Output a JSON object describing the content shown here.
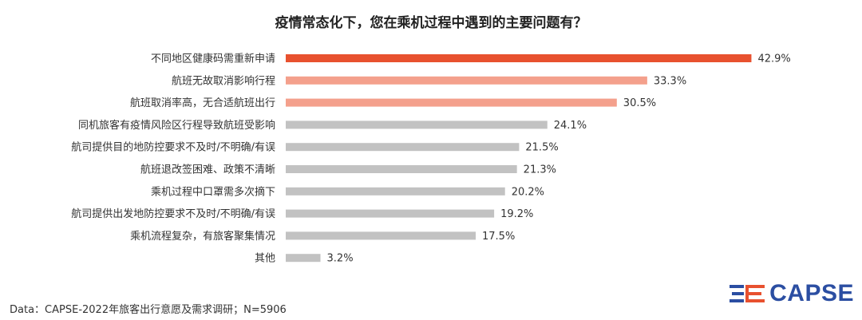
{
  "chart_data": {
    "type": "bar",
    "orientation": "horizontal",
    "title": "疫情常态化下，您在乘机过程中遇到的主要问题有？",
    "categories": [
      "不同地区健康码需重新申请",
      "航班无故取消影响行程",
      "航班取消率高，无合适航班出行",
      "同机旅客有疫情风险区行程导致航班受影响",
      "航司提供目的地防控要求不及时/不明确/有误",
      "航班退改签困难、政策不清晰",
      "乘机过程中口罩需多次摘下",
      "航司提供出发地防控要求不及时/不明确/有误",
      "乘机流程复杂，有旅客聚集情况",
      "其他"
    ],
    "values": [
      42.9,
      33.3,
      30.5,
      24.1,
      21.5,
      21.3,
      20.2,
      19.2,
      17.5,
      3.2
    ],
    "value_labels": [
      "42.9%",
      "33.3%",
      "30.5%",
      "24.1%",
      "21.5%",
      "21.3%",
      "20.2%",
      "19.2%",
      "17.5%",
      "3.2%"
    ],
    "colors": [
      "#E8512F",
      "#F4A08C",
      "#F4A08C",
      "#C2C2C2",
      "#C2C2C2",
      "#C2C2C2",
      "#C2C2C2",
      "#C2C2C2",
      "#C2C2C2",
      "#C2C2C2"
    ],
    "xlim": [
      0,
      45
    ],
    "grid": false,
    "legend": "none"
  },
  "source": "Data：CAPSE-2022年旅客出行意愿及需求调研；N=5906",
  "logo": {
    "text": "CAPSE",
    "color": "#2B4EA2",
    "accent": "#E8512F"
  }
}
